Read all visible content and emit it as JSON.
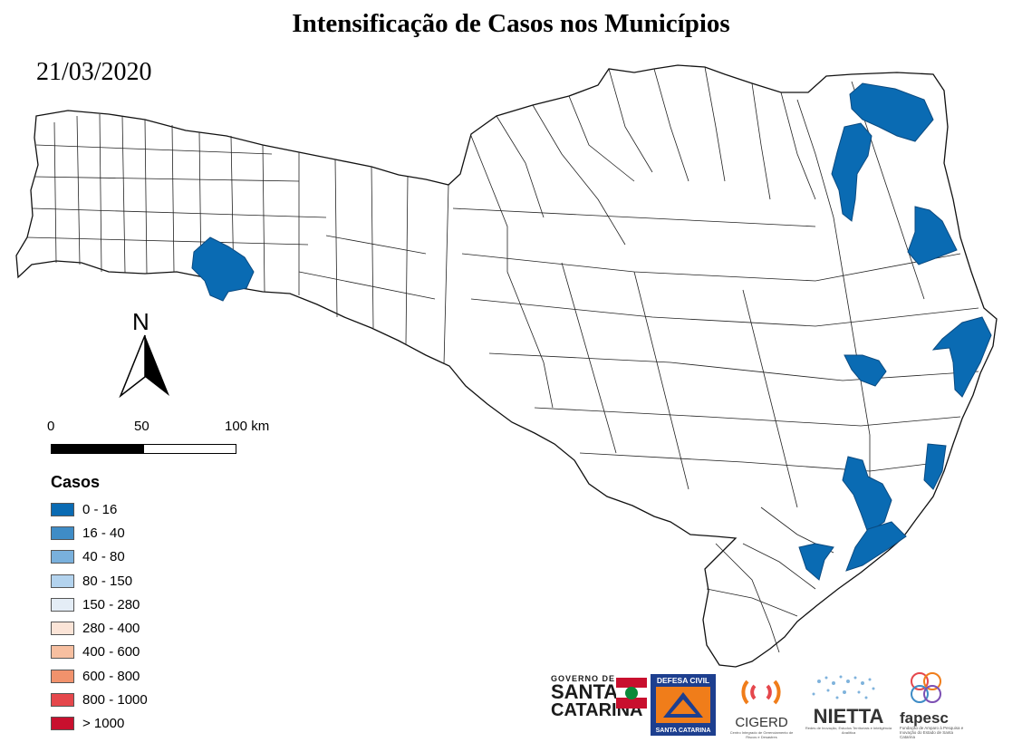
{
  "title": "Intensificação de Casos nos Municípios",
  "date": "21/03/2020",
  "north_label": "N",
  "scale": {
    "labels": [
      "0",
      "50",
      "100 km"
    ]
  },
  "legend": {
    "title": "Casos",
    "items": [
      {
        "label": "0 - 16",
        "color": "#0a6bb3"
      },
      {
        "label": "16 - 40",
        "color": "#3f8cc6"
      },
      {
        "label": "40 - 80",
        "color": "#79b0dc"
      },
      {
        "label": "80 - 150",
        "color": "#b3d3ee"
      },
      {
        "label": "150 - 280",
        "color": "#e4edf6"
      },
      {
        "label": "280 - 400",
        "color": "#fbe4d7"
      },
      {
        "label": "400 - 600",
        "color": "#f7bfa0"
      },
      {
        "label": "600 - 800",
        "color": "#f1926c"
      },
      {
        "label": "800 - 1000",
        "color": "#e5474c"
      },
      {
        "label": "> 1000",
        "color": "#c8102e"
      }
    ]
  },
  "map": {
    "region": "Santa Catarina",
    "highlight_color": "#0a6bb3",
    "highlight_class": "0 - 16"
  },
  "logos": {
    "governo": {
      "line1": "GOVERNO DE",
      "line2": "SANTA",
      "line3": "CATARINA"
    },
    "defesa": {
      "top": "DEFESA CIVIL",
      "bottom": "SANTA CATARINA"
    },
    "cigerd": {
      "name": "CIGERD",
      "sub": "Centro Integrado de Gerenciamento de Riscos e Desastres"
    },
    "nietta": {
      "name": "NIETTA",
      "sub": "Redes de Inovação, Estudos Territoriais e Inteligência Analítica"
    },
    "fapesc": {
      "name": "fapesc",
      "sub": "Fundação de Amparo à Pesquisa e Inovação do Estado de Santa Catarina"
    }
  }
}
